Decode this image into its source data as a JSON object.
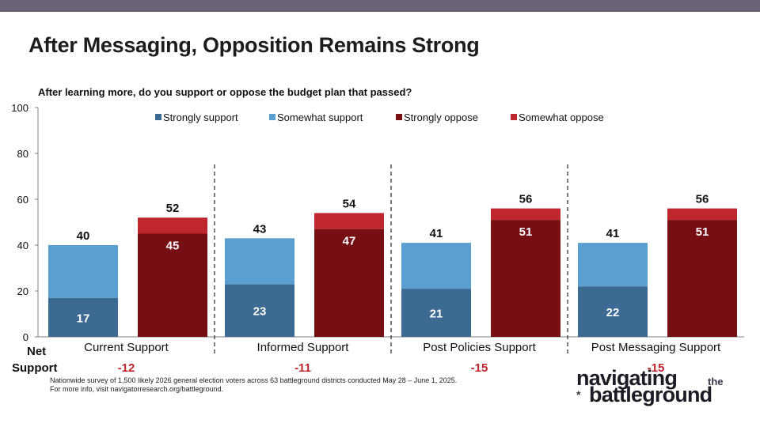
{
  "title": "After Messaging, Opposition Remains Strong",
  "question": "After learning more, do you support or oppose the budget plan that passed?",
  "net_label_line1": "Net",
  "net_label_line2": "Support",
  "footnote_line1": "Nationwide survey of 1,500 likely 2026 general election voters across 63 battleground districts conducted May 28 – June 1, 2025.",
  "footnote_line2": "For more info, visit navigatorresearch.org/battleground.",
  "logo": {
    "line1": "navigating",
    "small": "the",
    "line2": "battleground",
    "mark": "*"
  },
  "colors": {
    "strongly_support": "#3d6a92",
    "somewhat_support": "#5b9fd0",
    "strongly_oppose": "#760f14",
    "somewhat_oppose": "#c0262d",
    "net": "#c0262d",
    "topbar": "#6a6275"
  },
  "chart_data": {
    "type": "bar",
    "stacked": true,
    "ylim": [
      0,
      100
    ],
    "yticks": [
      0,
      20,
      40,
      60,
      80,
      100
    ],
    "legend": [
      "Strongly support",
      "Somewhat support",
      "Strongly oppose",
      "Somewhat oppose"
    ],
    "legend_position": "top",
    "groups": [
      {
        "category": "Current Support",
        "support_strong": 17,
        "support_total": 40,
        "oppose_strong": 45,
        "oppose_total": 52,
        "net": "-12"
      },
      {
        "category": "Informed Support",
        "support_strong": 23,
        "support_total": 43,
        "oppose_strong": 47,
        "oppose_total": 54,
        "net": "-11"
      },
      {
        "category": "Post Policies Support",
        "support_strong": 21,
        "support_total": 41,
        "oppose_strong": 51,
        "oppose_total": 56,
        "net": "-15"
      },
      {
        "category": "Post Messaging Support",
        "support_strong": 22,
        "support_total": 41,
        "oppose_strong": 51,
        "oppose_total": 56,
        "net": "-15"
      }
    ]
  }
}
